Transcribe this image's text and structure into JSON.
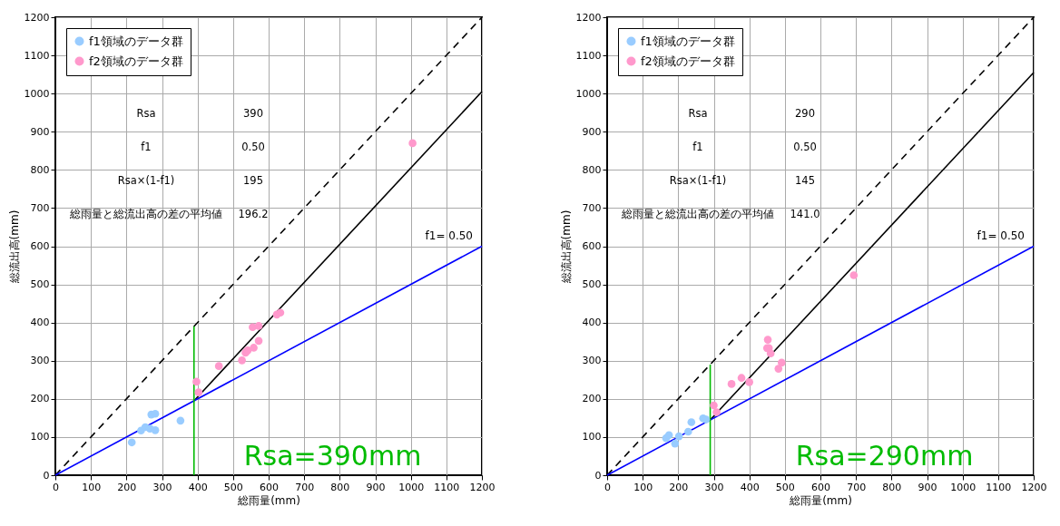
{
  "chart_data": [
    {
      "type": "scatter",
      "xlabel": "総雨量(mm)",
      "ylabel": "総流出高(mm)",
      "xlim": [
        0,
        1200
      ],
      "ylim": [
        0,
        1200
      ],
      "xticks": [
        0,
        100,
        200,
        300,
        400,
        500,
        600,
        700,
        800,
        900,
        1000,
        1100,
        1200
      ],
      "yticks": [
        0,
        100,
        200,
        300,
        400,
        500,
        600,
        700,
        800,
        900,
        1000,
        1100,
        1200
      ],
      "grid": true,
      "legend": "top left",
      "marker": "circle",
      "series": [
        {
          "type": "scatter",
          "name": "f1領域のデータ群",
          "color": "#99ccff",
          "x": [
            215,
            241,
            253,
            266,
            281,
            270,
            281,
            352
          ],
          "values": [
            86,
            117,
            126,
            122,
            118,
            159,
            161,
            143
          ]
        },
        {
          "type": "scatter",
          "name": "f2領域のデータ群",
          "color": "#ff99cc",
          "x": [
            397,
            403,
            460,
            525,
            535,
            541,
            558,
            572,
            555,
            572,
            623,
            633,
            1005
          ],
          "values": [
            245,
            217,
            286,
            301,
            321,
            327,
            334,
            352,
            388,
            391,
            421,
            426,
            870
          ]
        },
        {
          "type": "line",
          "color": "#000000",
          "line_style": "dashed",
          "marker": "none",
          "x": [
            0,
            1200
          ],
          "values": [
            0,
            1200
          ]
        },
        {
          "type": "line",
          "color": "#000000",
          "line_style": "solid",
          "marker": "none",
          "x": [
            390,
            1200
          ],
          "values": [
            195,
            1005
          ]
        },
        {
          "type": "line",
          "color": "#0000ff",
          "line_style": "solid",
          "marker": "none",
          "x": [
            0,
            1200
          ],
          "values": [
            0,
            600
          ]
        },
        {
          "type": "line",
          "color": "#00bb00",
          "line_style": "solid",
          "marker": "none",
          "x": [
            390,
            390
          ],
          "values": [
            0,
            390
          ]
        }
      ],
      "annotations": [
        "Rsa",
        "390",
        "f1",
        "0.50",
        "Rsa×(1-f1)",
        "195",
        "総雨量と総流出高の差の平均値",
        "196.2",
        "Rsa=390mm",
        "f1= 0.50"
      ]
    },
    {
      "type": "scatter",
      "xlabel": "総雨量(mm)",
      "ylabel": "総流出高(mm)",
      "xlim": [
        0,
        1200
      ],
      "ylim": [
        0,
        1200
      ],
      "xticks": [
        0,
        100,
        200,
        300,
        400,
        500,
        600,
        700,
        800,
        900,
        1000,
        1100,
        1200
      ],
      "yticks": [
        0,
        100,
        200,
        300,
        400,
        500,
        600,
        700,
        800,
        900,
        1000,
        1100,
        1200
      ],
      "grid": true,
      "legend": "top left",
      "marker": "circle",
      "series": [
        {
          "type": "scatter",
          "name": "f1領域のデータ群",
          "color": "#99ccff",
          "x": [
            166,
            174,
            191,
            202,
            228,
            237,
            270,
            278
          ],
          "values": [
            97,
            105,
            83,
            102,
            114,
            139,
            149,
            146
          ]
        },
        {
          "type": "scatter",
          "name": "f2領域のデータ群",
          "color": "#ff99cc",
          "x": [
            300,
            308,
            350,
            378,
            400,
            452,
            450,
            455,
            460,
            482,
            491,
            694
          ],
          "values": [
            183,
            165,
            239,
            255,
            244,
            355,
            333,
            333,
            319,
            279,
            295,
            524
          ]
        },
        {
          "type": "line",
          "color": "#000000",
          "line_style": "dashed",
          "marker": "none",
          "x": [
            0,
            1200
          ],
          "values": [
            0,
            1200
          ]
        },
        {
          "type": "line",
          "color": "#000000",
          "line_style": "solid",
          "marker": "none",
          "x": [
            290,
            1200
          ],
          "values": [
            145,
            1055
          ]
        },
        {
          "type": "line",
          "color": "#0000ff",
          "line_style": "solid",
          "marker": "none",
          "x": [
            0,
            1200
          ],
          "values": [
            0,
            600
          ]
        },
        {
          "type": "line",
          "color": "#00bb00",
          "line_style": "solid",
          "marker": "none",
          "x": [
            290,
            290
          ],
          "values": [
            0,
            290
          ]
        }
      ],
      "annotations": [
        "Rsa",
        "290",
        "f1",
        "0.50",
        "Rsa×(1-f1)",
        "145",
        "総雨量と総流出高の差の平均値",
        "141.0",
        "Rsa=290mm",
        "f1= 0.50"
      ]
    }
  ]
}
